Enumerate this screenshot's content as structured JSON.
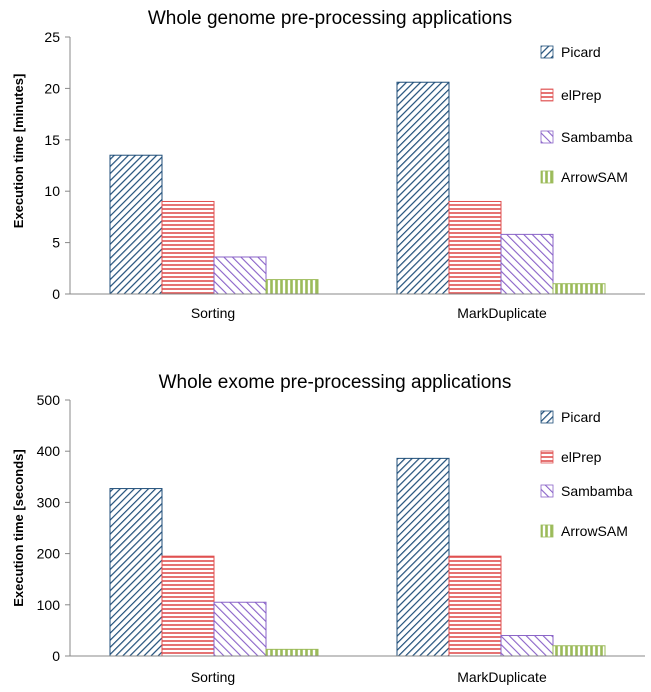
{
  "colors": {
    "picard": "#1f4e79",
    "elprep": "#e05050",
    "sambamba": "#8a63c8",
    "arrowsam": "#9bbb59"
  },
  "chart_data": [
    {
      "type": "bar",
      "title": "Whole genome pre-processing applications",
      "ylabel": "Execution time [minutes]",
      "xlabel": "",
      "ylim": [
        0,
        25
      ],
      "yticks": [
        0,
        5,
        10,
        15,
        20,
        25
      ],
      "grid": false,
      "legend_position": "right",
      "categories": [
        "Sorting",
        "MarkDuplicate"
      ],
      "series": [
        {
          "name": "Picard",
          "values": [
            13.5,
            20.6
          ]
        },
        {
          "name": "elPrep",
          "values": [
            9.0,
            9.0
          ]
        },
        {
          "name": "Sambamba",
          "values": [
            3.6,
            5.8
          ]
        },
        {
          "name": "ArrowSAM",
          "values": [
            1.4,
            1.0
          ]
        }
      ]
    },
    {
      "type": "bar",
      "title": "Whole exome pre-processing applications",
      "ylabel": "Execution time [seconds]",
      "xlabel": "",
      "ylim": [
        0,
        500
      ],
      "yticks": [
        0,
        100,
        200,
        300,
        400,
        500
      ],
      "grid": false,
      "legend_position": "right",
      "categories": [
        "Sorting",
        "MarkDuplicate"
      ],
      "series": [
        {
          "name": "Picard",
          "values": [
            327,
            386
          ]
        },
        {
          "name": "elPrep",
          "values": [
            195,
            195
          ]
        },
        {
          "name": "Sambamba",
          "values": [
            105,
            40
          ]
        },
        {
          "name": "ArrowSAM",
          "values": [
            13,
            20
          ]
        }
      ]
    }
  ]
}
